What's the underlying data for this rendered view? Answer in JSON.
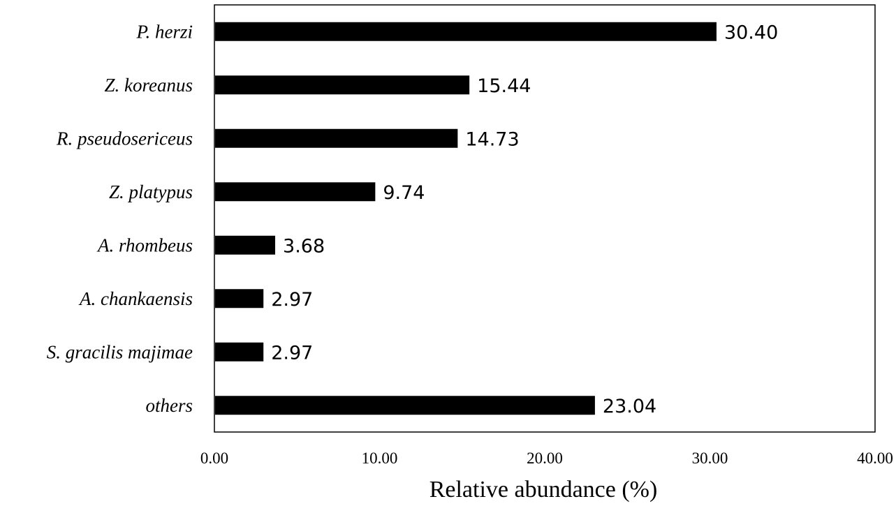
{
  "chart_data": {
    "type": "bar",
    "orientation": "horizontal",
    "categories": [
      "P. herzi",
      "Z. koreanus",
      "R. pseudosericeus",
      "Z. platypus",
      "A. rhombeus",
      "A. chankaensis",
      "S. gracilis majimae",
      "others"
    ],
    "values": [
      30.4,
      15.44,
      14.73,
      9.74,
      3.68,
      2.97,
      2.97,
      23.04
    ],
    "value_labels": [
      "30.40",
      "15.44",
      "14.73",
      "9.74",
      "3.68",
      "2.97",
      "2.97",
      "23.04"
    ],
    "title": "",
    "xlabel": "Relative abundance (%)",
    "ylabel": "",
    "xlim": [
      0,
      40
    ],
    "x_ticks": [
      "0.00",
      "10.00",
      "20.00",
      "30.00",
      "40.00"
    ],
    "grid": false,
    "legend": "none",
    "bar_color": "#000000"
  }
}
